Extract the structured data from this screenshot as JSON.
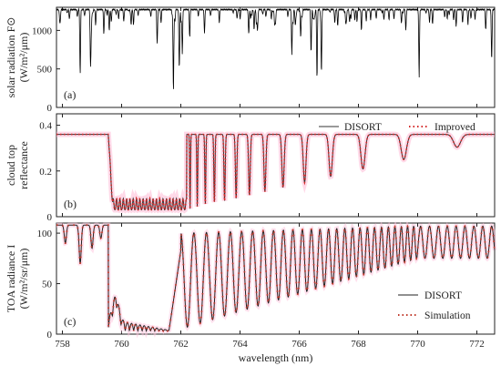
{
  "chart_data": {
    "type": "line",
    "xlabel": "wavelength (nm)",
    "xlim": [
      757.8,
      772.6
    ],
    "x_ticks": [
      "758",
      "760",
      "762",
      "764",
      "766",
      "768",
      "770",
      "772"
    ],
    "panels": [
      {
        "id": "a",
        "label": "(a)",
        "ylabel_line1": "solar radiation F⊙",
        "ylabel_line2": "(W/m²/μm)",
        "ylim": [
          0,
          1300
        ],
        "y_ticks": [
          0,
          500,
          1000
        ],
        "series": [
          {
            "name": "",
            "color": "#000000",
            "baseline": 1270,
            "lines": [
              [
                758.6,
                420
              ],
              [
                758.95,
                800
              ],
              [
                759.4,
                950
              ],
              [
                759.9,
                1150
              ],
              [
                760.4,
                1100
              ],
              [
                761.2,
                1050
              ],
              [
                761.75,
                420
              ],
              [
                761.95,
                560
              ],
              [
                762.05,
                700
              ],
              [
                762.3,
                900
              ],
              [
                762.8,
                1150
              ],
              [
                763.3,
                1100
              ],
              [
                763.9,
                1150
              ],
              [
                764.6,
                1150
              ],
              [
                765.2,
                1100
              ],
              [
                765.75,
                850
              ],
              [
                766.05,
                900
              ],
              [
                766.4,
                700
              ],
              [
                766.6,
                350
              ],
              [
                766.75,
                450
              ],
              [
                767.3,
                1050
              ],
              [
                767.7,
                1100
              ],
              [
                768.1,
                1000
              ],
              [
                768.6,
                1150
              ],
              [
                769.2,
                1150
              ],
              [
                769.6,
                1000
              ],
              [
                770.05,
                380
              ],
              [
                770.4,
                1100
              ],
              [
                771.0,
                1150
              ],
              [
                771.3,
                1050
              ],
              [
                771.8,
                1150
              ],
              [
                772.3,
                1000
              ],
              [
                772.5,
                600
              ]
            ]
          }
        ]
      },
      {
        "id": "b",
        "label": "(b)",
        "ylabel_line1": "cloud top",
        "ylabel_line2": "reflectance",
        "ylim": [
          0,
          0.45
        ],
        "y_ticks": [
          "0",
          "0.2",
          "0.4"
        ],
        "legend": [
          {
            "name": "DISORT",
            "color": "#333333",
            "style": "solid"
          },
          {
            "name": "Improved",
            "color": "#d42a2a",
            "style": "dotted"
          }
        ],
        "continuum": 0.36,
        "band_start": 759.55,
        "band_end": 772.6,
        "band_floor": 0.03,
        "band_min_depth": 0.355
      },
      {
        "id": "c",
        "label": "(c)",
        "ylabel_line1": "TOA radiance I",
        "ylabel_line2": "(W/m²/sr/μm)",
        "ylim": [
          0,
          110
        ],
        "y_ticks": [
          0,
          50,
          100
        ],
        "legend": [
          {
            "name": "DISORT",
            "color": "#222222",
            "style": "solid"
          },
          {
            "name": "Simulation",
            "color": "#c0392b",
            "style": "dotted"
          }
        ],
        "continuum": 108,
        "band_start": 759.55,
        "band_floor": 3,
        "recovery_peaks": [
          [
            762.1,
            102
          ],
          [
            762.6,
            80
          ],
          [
            763.0,
            75
          ],
          [
            763.5,
            60
          ],
          [
            764.0,
            65
          ],
          [
            764.5,
            78
          ],
          [
            765.0,
            82
          ],
          [
            765.5,
            85
          ],
          [
            766.0,
            88
          ],
          [
            766.5,
            92
          ],
          [
            767.0,
            95
          ],
          [
            767.5,
            98
          ],
          [
            768.0,
            100
          ],
          [
            768.5,
            102
          ],
          [
            769.0,
            104
          ],
          [
            769.5,
            105
          ],
          [
            770.0,
            106
          ],
          [
            770.5,
            106
          ],
          [
            771.0,
            107
          ],
          [
            771.5,
            107
          ],
          [
            772.0,
            107
          ],
          [
            772.5,
            107
          ]
        ],
        "pre_band_lines": [
          [
            758.1,
            90
          ],
          [
            758.6,
            70
          ],
          [
            759.0,
            85
          ],
          [
            759.3,
            95
          ]
        ]
      }
    ]
  }
}
